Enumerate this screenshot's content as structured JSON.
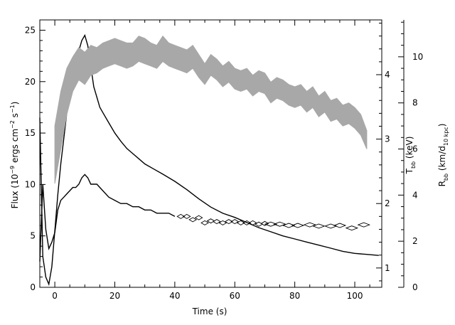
{
  "chart_data": {
    "type": "line",
    "title": "",
    "xlabel": "Time (s)",
    "ylabel_left": {
      "main": "Flux (10",
      "exp1": "−9",
      "mid": " ergs cm",
      "exp2": "−2",
      "mid2": " s",
      "exp3": "−1",
      "end": ")"
    },
    "ylabel_right1": {
      "main": "T",
      "sub": "bb",
      "end": " (keV)"
    },
    "ylabel_right2": {
      "main": "R",
      "sub": "bb",
      "mid": " (km/d",
      "sub2": "10 kpc",
      "end": ")"
    },
    "xlim": [
      -5,
      109
    ],
    "ylim_flux": [
      0,
      26
    ],
    "ylim_kT": [
      0.7,
      4.85
    ],
    "ylim_R": [
      0,
      11.6
    ],
    "x_ticks": [
      0,
      20,
      40,
      60,
      80,
      100
    ],
    "flux_ticks": [
      0,
      5,
      10,
      15,
      20,
      25
    ],
    "kT_ticks": [
      1,
      2,
      3,
      4
    ],
    "R_ticks": [
      0,
      2,
      4,
      6,
      8,
      10
    ],
    "colors": {
      "flux": "#000000",
      "kT": "#000000",
      "radius_band": "#a8a8a8",
      "axes": "#000000"
    },
    "series": [
      {
        "axis": "left",
        "style": "line",
        "x": [
          -5,
          -4,
          -3,
          -2,
          -1,
          0,
          1,
          2,
          3,
          4,
          5,
          6,
          7,
          8,
          9,
          10,
          11,
          12,
          13,
          14,
          15,
          16,
          18,
          20,
          22,
          24,
          26,
          28,
          30,
          33,
          36,
          40,
          44,
          48,
          52,
          56,
          60,
          64,
          68,
          72,
          76,
          80,
          84,
          88,
          92,
          96,
          100,
          104,
          108
        ],
        "y": [
          16.5,
          3.0,
          1.0,
          0.3,
          2.0,
          5.5,
          9.0,
          12.0,
          14.5,
          17.0,
          19.0,
          21.0,
          22.0,
          23.0,
          24.0,
          24.5,
          23.5,
          21.5,
          19.5,
          18.5,
          17.5,
          17.0,
          16.0,
          15.0,
          14.2,
          13.5,
          13.0,
          12.5,
          12.0,
          11.5,
          11.0,
          10.3,
          9.5,
          8.6,
          7.8,
          7.2,
          6.8,
          6.3,
          5.8,
          5.4,
          5.0,
          4.7,
          4.4,
          4.1,
          3.8,
          3.5,
          3.3,
          3.2,
          3.1
        ]
      },
      {
        "axis": "kT",
        "style": "line",
        "x": [
          -5,
          -4,
          -3,
          -2,
          -1,
          0,
          1,
          2,
          3,
          4,
          5,
          6,
          7,
          8,
          9,
          10,
          11,
          12,
          14,
          16,
          18,
          20,
          22,
          24,
          26,
          28,
          30,
          32,
          34,
          36,
          38,
          40
        ],
        "y": [
          1.1,
          2.3,
          1.6,
          1.3,
          1.4,
          1.55,
          1.9,
          2.05,
          2.1,
          2.15,
          2.2,
          2.25,
          2.25,
          2.3,
          2.4,
          2.45,
          2.4,
          2.3,
          2.3,
          2.2,
          2.1,
          2.05,
          2.0,
          2.0,
          1.95,
          1.95,
          1.9,
          1.9,
          1.85,
          1.85,
          1.85,
          1.8
        ]
      },
      {
        "axis": "kT",
        "style": "diamond",
        "x": [
          42,
          44,
          46,
          48,
          50,
          52,
          54,
          56,
          58,
          60,
          62,
          64,
          66,
          68,
          70,
          72,
          75,
          78,
          81,
          85,
          88,
          92,
          95,
          99,
          103
        ],
        "y": [
          1.8,
          1.8,
          1.75,
          1.78,
          1.7,
          1.73,
          1.72,
          1.7,
          1.72,
          1.72,
          1.7,
          1.7,
          1.7,
          1.68,
          1.69,
          1.68,
          1.68,
          1.66,
          1.66,
          1.67,
          1.65,
          1.65,
          1.66,
          1.62,
          1.67
        ]
      },
      {
        "axis": "R",
        "style": "band",
        "x": [
          0,
          2,
          4,
          6,
          8,
          10,
          12,
          14,
          16,
          18,
          20,
          22,
          24,
          26,
          28,
          30,
          32,
          34,
          36,
          38,
          40,
          42,
          44,
          46,
          48,
          50,
          52,
          54,
          56,
          58,
          60,
          62,
          64,
          66,
          68,
          70,
          72,
          74,
          76,
          78,
          80,
          82,
          84,
          86,
          88,
          90,
          92,
          94,
          96,
          98,
          100,
          102,
          104
        ],
        "lo": [
          4.5,
          6.0,
          7.5,
          8.5,
          9.0,
          8.8,
          9.2,
          9.3,
          9.5,
          9.6,
          9.7,
          9.6,
          9.5,
          9.6,
          9.8,
          9.7,
          9.6,
          9.5,
          9.8,
          9.6,
          9.5,
          9.4,
          9.3,
          9.5,
          9.1,
          8.8,
          9.2,
          9.0,
          8.7,
          8.9,
          8.6,
          8.5,
          8.6,
          8.3,
          8.5,
          8.4,
          8.0,
          8.2,
          8.1,
          7.9,
          7.8,
          7.9,
          7.6,
          7.8,
          7.4,
          7.6,
          7.2,
          7.3,
          7.0,
          7.1,
          6.9,
          6.6,
          6.0
        ],
        "hi": [
          7.0,
          8.5,
          9.5,
          10.0,
          10.4,
          10.2,
          10.5,
          10.4,
          10.6,
          10.7,
          10.8,
          10.7,
          10.6,
          10.6,
          10.9,
          10.8,
          10.6,
          10.5,
          10.9,
          10.6,
          10.5,
          10.4,
          10.3,
          10.5,
          10.1,
          9.7,
          10.1,
          9.9,
          9.6,
          9.8,
          9.5,
          9.4,
          9.5,
          9.2,
          9.4,
          9.3,
          8.9,
          9.1,
          9.0,
          8.8,
          8.7,
          8.8,
          8.5,
          8.7,
          8.3,
          8.5,
          8.1,
          8.2,
          7.9,
          8.0,
          7.8,
          7.5,
          6.8
        ]
      }
    ]
  }
}
